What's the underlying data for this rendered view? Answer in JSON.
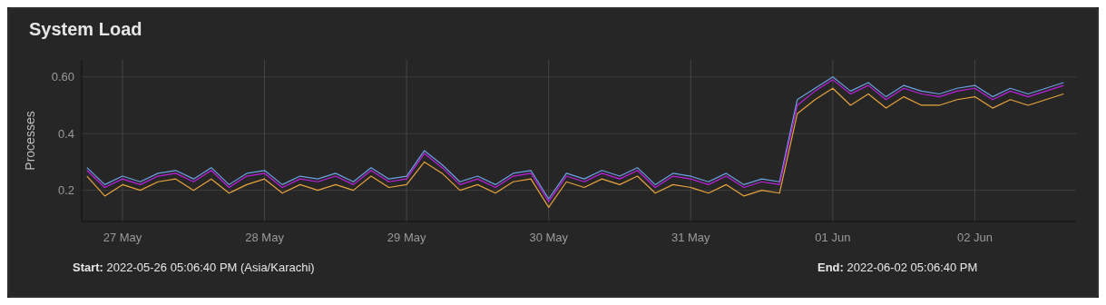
{
  "chart_data": {
    "type": "line",
    "title": "System Load",
    "ylabel": "Processes",
    "x": [
      "2022-05-26T18:00",
      "2022-05-26T21:00",
      "2022-05-27T00:00",
      "2022-05-27T03:00",
      "2022-05-27T06:00",
      "2022-05-27T09:00",
      "2022-05-27T12:00",
      "2022-05-27T15:00",
      "2022-05-27T18:00",
      "2022-05-27T21:00",
      "2022-05-28T00:00",
      "2022-05-28T03:00",
      "2022-05-28T06:00",
      "2022-05-28T09:00",
      "2022-05-28T12:00",
      "2022-05-28T15:00",
      "2022-05-28T18:00",
      "2022-05-28T21:00",
      "2022-05-29T00:00",
      "2022-05-29T03:00",
      "2022-05-29T06:00",
      "2022-05-29T09:00",
      "2022-05-29T12:00",
      "2022-05-29T15:00",
      "2022-05-29T18:00",
      "2022-05-29T21:00",
      "2022-05-30T00:00",
      "2022-05-30T03:00",
      "2022-05-30T06:00",
      "2022-05-30T09:00",
      "2022-05-30T12:00",
      "2022-05-30T15:00",
      "2022-05-30T18:00",
      "2022-05-30T21:00",
      "2022-05-31T00:00",
      "2022-05-31T03:00",
      "2022-05-31T06:00",
      "2022-05-31T09:00",
      "2022-05-31T12:00",
      "2022-05-31T15:00",
      "2022-05-31T18:00",
      "2022-05-31T21:00",
      "2022-06-01T00:00",
      "2022-06-01T03:00",
      "2022-06-01T06:00",
      "2022-06-01T09:00",
      "2022-06-01T12:00",
      "2022-06-01T15:00",
      "2022-06-01T18:00",
      "2022-06-01T21:00",
      "2022-06-02T00:00",
      "2022-06-02T03:00",
      "2022-06-02T06:00",
      "2022-06-02T09:00",
      "2022-06-02T12:00",
      "2022-06-02T15:00"
    ],
    "series": [
      {
        "color": "#6ba3e3",
        "values": [
          0.28,
          0.22,
          0.25,
          0.23,
          0.26,
          0.27,
          0.24,
          0.28,
          0.22,
          0.26,
          0.27,
          0.22,
          0.25,
          0.24,
          0.26,
          0.23,
          0.28,
          0.24,
          0.25,
          0.34,
          0.29,
          0.23,
          0.25,
          0.22,
          0.26,
          0.27,
          0.17,
          0.26,
          0.24,
          0.27,
          0.25,
          0.28,
          0.22,
          0.26,
          0.25,
          0.23,
          0.26,
          0.22,
          0.24,
          0.23,
          0.52,
          0.56,
          0.6,
          0.55,
          0.58,
          0.53,
          0.57,
          0.55,
          0.54,
          0.56,
          0.57,
          0.53,
          0.56,
          0.54,
          0.56,
          0.58
        ]
      },
      {
        "color": "#c020e0",
        "values": [
          0.27,
          0.21,
          0.24,
          0.22,
          0.25,
          0.26,
          0.23,
          0.27,
          0.21,
          0.25,
          0.26,
          0.21,
          0.24,
          0.23,
          0.25,
          0.22,
          0.27,
          0.23,
          0.24,
          0.33,
          0.28,
          0.22,
          0.24,
          0.21,
          0.25,
          0.26,
          0.16,
          0.25,
          0.23,
          0.26,
          0.24,
          0.27,
          0.21,
          0.25,
          0.24,
          0.22,
          0.25,
          0.21,
          0.23,
          0.22,
          0.5,
          0.55,
          0.59,
          0.54,
          0.57,
          0.52,
          0.56,
          0.54,
          0.53,
          0.55,
          0.56,
          0.52,
          0.55,
          0.53,
          0.55,
          0.57
        ]
      },
      {
        "color": "#e8a33c",
        "values": [
          0.25,
          0.18,
          0.22,
          0.2,
          0.23,
          0.24,
          0.2,
          0.24,
          0.19,
          0.22,
          0.24,
          0.19,
          0.22,
          0.2,
          0.22,
          0.2,
          0.25,
          0.21,
          0.22,
          0.3,
          0.26,
          0.2,
          0.22,
          0.19,
          0.23,
          0.24,
          0.14,
          0.23,
          0.21,
          0.24,
          0.22,
          0.25,
          0.19,
          0.22,
          0.21,
          0.19,
          0.22,
          0.18,
          0.2,
          0.19,
          0.47,
          0.52,
          0.56,
          0.5,
          0.54,
          0.49,
          0.53,
          0.5,
          0.5,
          0.52,
          0.53,
          0.49,
          0.52,
          0.5,
          0.52,
          0.54
        ]
      }
    ],
    "xlim": [
      "2022-05-26T17:06",
      "2022-06-02T17:06"
    ],
    "xticks": [
      {
        "value": "2022-05-27",
        "label": "27 May"
      },
      {
        "value": "2022-05-28",
        "label": "28 May"
      },
      {
        "value": "2022-05-29",
        "label": "29 May"
      },
      {
        "value": "2022-05-30",
        "label": "30 May"
      },
      {
        "value": "2022-05-31",
        "label": "31 May"
      },
      {
        "value": "2022-06-01",
        "label": "01 Jun"
      },
      {
        "value": "2022-06-02",
        "label": "02 Jun"
      }
    ],
    "ylim": [
      0.09,
      0.66
    ],
    "yticks": [
      {
        "value": 0.2,
        "label": "0.2"
      },
      {
        "value": 0.4,
        "label": "0.4"
      },
      {
        "value": 0.6,
        "label": "0.60"
      }
    ],
    "grid": true,
    "marker": "none",
    "line_style": "solid",
    "annotations": [
      "Start: 2022-05-26 05:06:40 PM (Asia/Karachi)",
      "End: 2022-06-02 05:06:40 PM"
    ]
  }
}
